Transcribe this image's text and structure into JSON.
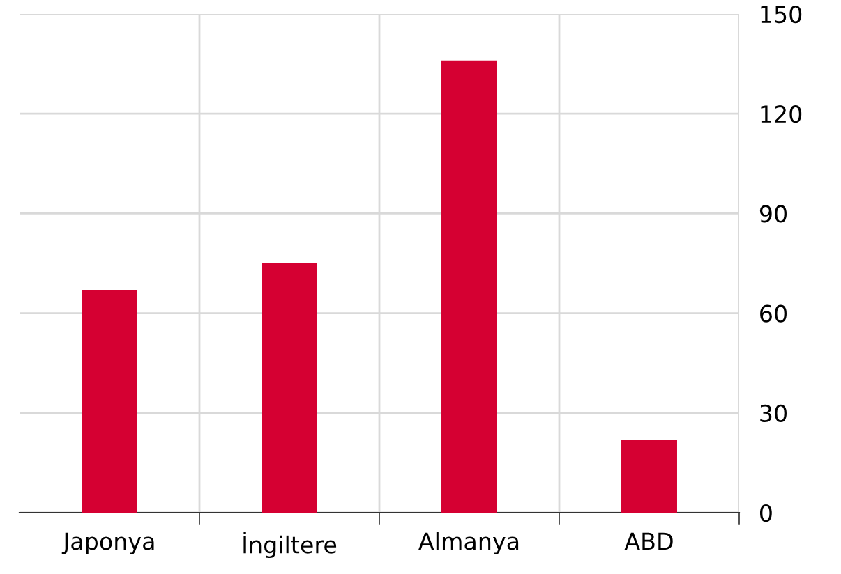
{
  "chart_data": {
    "type": "bar",
    "categories": [
      "Japonya",
      "İngiltere",
      "Almanya",
      "ABD"
    ],
    "values": [
      67,
      75,
      136,
      22
    ],
    "color": "#d50032",
    "ylim": [
      0,
      150
    ],
    "yticks": [
      0,
      30,
      60,
      90,
      120,
      150
    ],
    "grid": true
  }
}
